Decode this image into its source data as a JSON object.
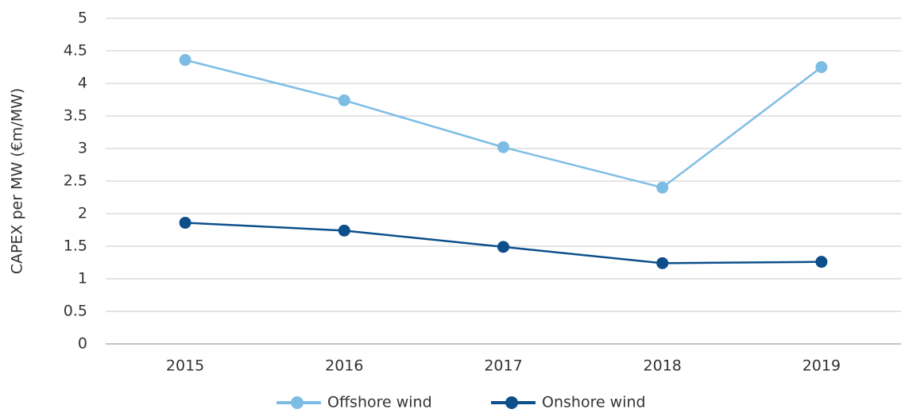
{
  "chart_data": {
    "type": "line",
    "y_label": "CAPEX per MW (€m/MW)",
    "categories": [
      "2015",
      "2016",
      "2017",
      "2018",
      "2019"
    ],
    "series": [
      {
        "name": "Offshore wind",
        "color": "#7dbde5",
        "values": [
          4.36,
          3.74,
          3.02,
          2.4,
          4.25
        ]
      },
      {
        "name": "Onshore wind",
        "color": "#0d4f8b",
        "values": [
          1.86,
          1.74,
          1.49,
          1.24,
          1.26
        ]
      }
    ],
    "ylim": [
      0,
      5
    ],
    "yticks": [
      0,
      0.5,
      1,
      1.5,
      2,
      2.5,
      3,
      3.5,
      4,
      4.5,
      5
    ],
    "grid": true,
    "legend": "bottom"
  }
}
